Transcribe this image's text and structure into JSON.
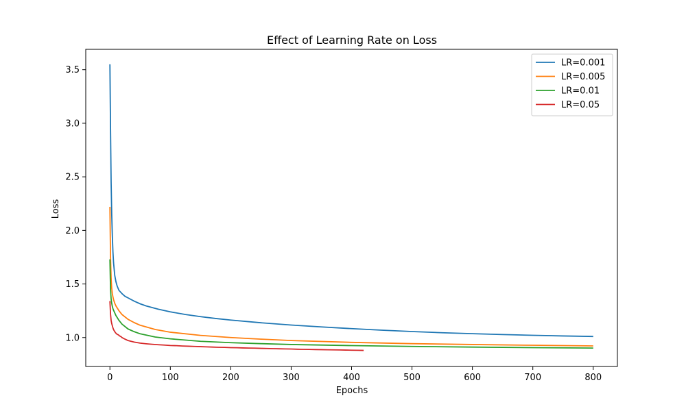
{
  "chart_data": {
    "type": "line",
    "title": "Effect of Learning Rate on Loss",
    "xlabel": "Epochs",
    "ylabel": "Loss",
    "xlim": [
      -40,
      840
    ],
    "ylim": [
      0.73,
      3.69
    ],
    "xticks": [
      0,
      100,
      200,
      300,
      400,
      500,
      600,
      700,
      800
    ],
    "yticks": [
      1.0,
      1.5,
      2.0,
      2.5,
      3.0,
      3.5
    ],
    "ytick_labels": [
      "1.0",
      "1.5",
      "2.0",
      "2.5",
      "3.0",
      "3.5"
    ],
    "grid": false,
    "legend_position": "upper-right",
    "series": [
      {
        "name": "LR=0.001",
        "color": "#1f77b4",
        "x": [
          0,
          1,
          2,
          3,
          4,
          5,
          6,
          8,
          10,
          12,
          15,
          20,
          25,
          30,
          40,
          50,
          60,
          80,
          100,
          125,
          150,
          175,
          200,
          250,
          300,
          350,
          400,
          450,
          500,
          550,
          600,
          650,
          700,
          750,
          800
        ],
        "y": [
          3.55,
          2.95,
          2.45,
          2.15,
          1.95,
          1.8,
          1.7,
          1.58,
          1.52,
          1.48,
          1.44,
          1.41,
          1.385,
          1.37,
          1.34,
          1.315,
          1.295,
          1.265,
          1.24,
          1.215,
          1.195,
          1.178,
          1.163,
          1.138,
          1.117,
          1.099,
          1.083,
          1.069,
          1.056,
          1.045,
          1.036,
          1.028,
          1.021,
          1.015,
          1.01
        ]
      },
      {
        "name": "LR=0.005",
        "color": "#ff7f0e",
        "x": [
          0,
          1,
          2,
          3,
          4,
          5,
          6,
          8,
          10,
          15,
          20,
          30,
          40,
          50,
          75,
          100,
          150,
          200,
          250,
          300,
          400,
          500,
          600,
          700,
          800
        ],
        "y": [
          2.22,
          1.75,
          1.55,
          1.46,
          1.41,
          1.38,
          1.355,
          1.32,
          1.295,
          1.25,
          1.215,
          1.17,
          1.14,
          1.115,
          1.075,
          1.05,
          1.02,
          1.0,
          0.985,
          0.972,
          0.955,
          0.943,
          0.935,
          0.928,
          0.922
        ]
      },
      {
        "name": "LR=0.01",
        "color": "#2ca02c",
        "x": [
          0,
          1,
          2,
          3,
          4,
          5,
          6,
          8,
          10,
          15,
          20,
          30,
          40,
          50,
          75,
          100,
          150,
          200,
          250,
          300,
          400,
          500,
          600,
          700,
          800
        ],
        "y": [
          1.73,
          1.45,
          1.36,
          1.32,
          1.29,
          1.27,
          1.255,
          1.23,
          1.205,
          1.16,
          1.125,
          1.08,
          1.055,
          1.035,
          1.005,
          0.988,
          0.965,
          0.952,
          0.943,
          0.935,
          0.925,
          0.917,
          0.911,
          0.906,
          0.902
        ]
      },
      {
        "name": "LR=0.05",
        "color": "#d62728",
        "x": [
          0,
          1,
          2,
          3,
          4,
          5,
          6,
          8,
          10,
          12,
          14,
          16,
          18,
          20,
          25,
          30,
          40,
          50,
          60,
          70,
          80,
          90,
          100,
          110,
          120,
          130,
          140,
          150,
          160,
          170,
          180,
          190,
          200,
          210,
          220,
          230,
          240,
          250,
          260,
          270,
          280,
          290,
          300,
          310,
          320,
          330,
          340,
          350,
          360,
          370,
          380,
          390,
          400,
          410,
          420
        ],
        "y": [
          1.34,
          1.22,
          1.16,
          1.13,
          1.11,
          1.09,
          1.075,
          1.055,
          1.04,
          1.03,
          1.025,
          1.015,
          1.01,
          1.0,
          0.985,
          0.972,
          0.958,
          0.948,
          0.942,
          0.937,
          0.933,
          0.93,
          0.926,
          0.924,
          0.921,
          0.919,
          0.917,
          0.915,
          0.913,
          0.911,
          0.909,
          0.908,
          0.906,
          0.905,
          0.903,
          0.902,
          0.901,
          0.899,
          0.898,
          0.896,
          0.895,
          0.894,
          0.893,
          0.891,
          0.89,
          0.889,
          0.888,
          0.887,
          0.886,
          0.885,
          0.884,
          0.883,
          0.882,
          0.881,
          0.88
        ]
      }
    ]
  }
}
